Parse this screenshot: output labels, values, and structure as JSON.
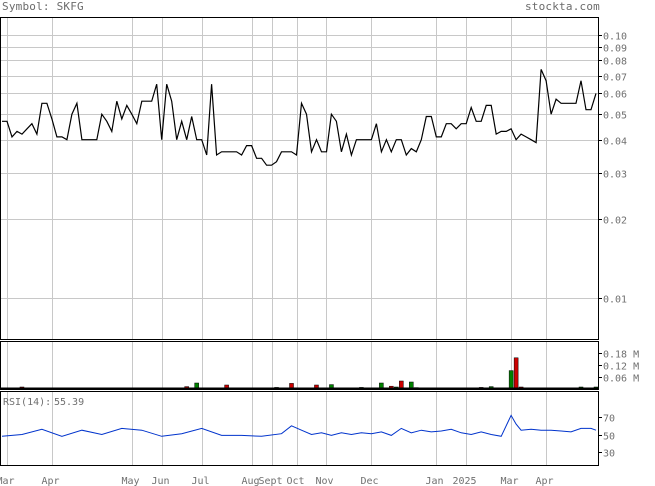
{
  "header": {
    "symbol_label": "Symbol:",
    "symbol": "SKFG",
    "brand": "stockta.com"
  },
  "colors": {
    "grid": "#c8c8c8",
    "price_line": "#000000",
    "volume_up": "#008000",
    "volume_down": "#cc0000",
    "rsi_line": "#0033cc",
    "rsi_value": "#0033cc",
    "axis_text": "#707070"
  },
  "chart_data": [
    {
      "type": "line",
      "name": "price",
      "scale": "log",
      "ylim": [
        0.007,
        0.117
      ],
      "yticks": [
        0.01,
        0.02,
        0.03,
        0.04,
        0.05,
        0.06,
        0.07,
        0.08,
        0.09,
        0.1
      ],
      "ytick_labels": [
        "0.01",
        "0.02",
        "0.03",
        "0.04",
        "0.05",
        "0.06",
        "0.07",
        "0.08",
        "0.09",
        "0.10"
      ],
      "grid": true,
      "x": [
        0,
        1,
        2,
        3,
        4,
        5,
        6,
        7,
        8,
        9,
        10,
        11,
        12,
        13,
        14,
        15,
        16,
        17,
        18,
        19,
        20,
        21,
        22,
        23,
        24,
        25,
        26,
        27,
        28,
        29,
        30,
        31,
        32,
        33,
        34,
        35,
        36,
        37,
        38,
        39,
        40,
        41,
        42,
        43,
        44,
        45,
        46,
        47,
        48,
        49,
        50,
        51,
        52,
        53,
        54,
        55,
        56,
        57,
        58,
        59,
        60,
        61,
        62,
        63,
        64,
        65,
        66,
        67,
        68,
        69,
        70,
        71,
        72,
        73,
        74,
        75,
        76,
        77,
        78,
        79,
        80,
        81,
        82,
        83,
        84,
        85,
        86,
        87,
        88,
        89,
        90,
        91,
        92,
        93,
        94,
        95,
        96,
        97,
        98,
        99,
        100,
        101,
        102,
        103,
        104,
        105,
        106,
        107,
        108,
        109,
        110,
        111,
        112,
        113,
        114,
        115,
        116,
        117,
        118,
        119
      ],
      "values": [
        0.047,
        0.047,
        0.041,
        0.043,
        0.042,
        0.044,
        0.046,
        0.042,
        0.055,
        0.055,
        0.048,
        0.041,
        0.041,
        0.04,
        0.05,
        0.055,
        0.04,
        0.04,
        0.04,
        0.04,
        0.05,
        0.047,
        0.043,
        0.056,
        0.048,
        0.054,
        0.05,
        0.046,
        0.056,
        0.056,
        0.056,
        0.065,
        0.04,
        0.065,
        0.056,
        0.04,
        0.047,
        0.04,
        0.049,
        0.04,
        0.04,
        0.035,
        0.065,
        0.035,
        0.036,
        0.036,
        0.036,
        0.036,
        0.035,
        0.038,
        0.038,
        0.034,
        0.034,
        0.032,
        0.032,
        0.033,
        0.036,
        0.036,
        0.036,
        0.035,
        0.055,
        0.05,
        0.036,
        0.04,
        0.036,
        0.036,
        0.05,
        0.047,
        0.036,
        0.042,
        0.035,
        0.04,
        0.04,
        0.04,
        0.04,
        0.046,
        0.036,
        0.04,
        0.036,
        0.04,
        0.04,
        0.035,
        0.037,
        0.036,
        0.04,
        0.049,
        0.049,
        0.041,
        0.041,
        0.046,
        0.046,
        0.044,
        0.046,
        0.046,
        0.053,
        0.047,
        0.047,
        0.054,
        0.054,
        0.042,
        0.043,
        0.043,
        0.044,
        0.04,
        0.042,
        0.041,
        0.04,
        0.039,
        0.074,
        0.067,
        0.05,
        0.057,
        0.055,
        0.055,
        0.055,
        0.055,
        0.067,
        0.052,
        0.052,
        0.06
      ]
    },
    {
      "type": "bar",
      "name": "volume",
      "yticks": [
        0.06,
        0.12,
        0.18
      ],
      "ytick_labels": [
        "0.06 M",
        "0.12 M",
        "0.18 M"
      ],
      "ylim": [
        0,
        0.24
      ],
      "bars": [
        {
          "x": 4,
          "v": 0.01,
          "dir": "down"
        },
        {
          "x": 37,
          "v": 0.012,
          "dir": "down"
        },
        {
          "x": 39,
          "v": 0.03,
          "dir": "up"
        },
        {
          "x": 45,
          "v": 0.02,
          "dir": "down"
        },
        {
          "x": 52,
          "v": 0.005,
          "dir": "down"
        },
        {
          "x": 55,
          "v": 0.008,
          "dir": "up"
        },
        {
          "x": 58,
          "v": 0.028,
          "dir": "down"
        },
        {
          "x": 63,
          "v": 0.02,
          "dir": "down"
        },
        {
          "x": 66,
          "v": 0.022,
          "dir": "up"
        },
        {
          "x": 72,
          "v": 0.008,
          "dir": "up"
        },
        {
          "x": 76,
          "v": 0.03,
          "dir": "up"
        },
        {
          "x": 78,
          "v": 0.014,
          "dir": "down"
        },
        {
          "x": 79,
          "v": 0.01,
          "dir": "up"
        },
        {
          "x": 80,
          "v": 0.04,
          "dir": "down"
        },
        {
          "x": 82,
          "v": 0.035,
          "dir": "up"
        },
        {
          "x": 83,
          "v": 0.007,
          "dir": "down"
        },
        {
          "x": 96,
          "v": 0.008,
          "dir": "down"
        },
        {
          "x": 98,
          "v": 0.012,
          "dir": "up"
        },
        {
          "x": 102,
          "v": 0.092,
          "dir": "up"
        },
        {
          "x": 103,
          "v": 0.156,
          "dir": "down"
        },
        {
          "x": 104,
          "v": 0.01,
          "dir": "down"
        },
        {
          "x": 106,
          "v": 0.005,
          "dir": "up"
        },
        {
          "x": 116,
          "v": 0.01,
          "dir": "up"
        },
        {
          "x": 119,
          "v": 0.01,
          "dir": "up"
        }
      ]
    },
    {
      "type": "line",
      "name": "rsi",
      "label": "RSI(14):",
      "value_text": "55.39",
      "ylim": [
        15,
        100
      ],
      "yticks": [
        30,
        50,
        70
      ],
      "ytick_labels": [
        "30",
        "50",
        "70"
      ],
      "x": [
        0,
        4,
        8,
        12,
        16,
        20,
        24,
        28,
        32,
        36,
        40,
        44,
        48,
        52,
        56,
        58,
        60,
        62,
        64,
        66,
        68,
        70,
        72,
        74,
        76,
        78,
        80,
        82,
        84,
        86,
        88,
        90,
        92,
        94,
        96,
        98,
        100,
        102,
        103,
        104,
        106,
        108,
        110,
        112,
        114,
        116,
        118,
        119
      ],
      "values": [
        48,
        50,
        56,
        48,
        55,
        50,
        57,
        55,
        48,
        51,
        57,
        49,
        49,
        48,
        51,
        60,
        55,
        50,
        52,
        49,
        52,
        50,
        52,
        51,
        53,
        49,
        57,
        52,
        55,
        53,
        54,
        56,
        52,
        50,
        53,
        50,
        48,
        72,
        62,
        55,
        56,
        55,
        55,
        54,
        53,
        57,
        57,
        55
      ]
    }
  ],
  "x_axis": {
    "months": [
      {
        "label": "Mar",
        "x": 1
      },
      {
        "label": "Apr",
        "x": 10
      },
      {
        "label": "May",
        "x": 26
      },
      {
        "label": "Jun",
        "x": 32
      },
      {
        "label": "Jul",
        "x": 40
      },
      {
        "label": "Aug",
        "x": 50
      },
      {
        "label": "Sept",
        "x": 54
      },
      {
        "label": "Oct",
        "x": 59
      },
      {
        "label": "Nov",
        "x": 65
      },
      {
        "label": "Dec",
        "x": 74
      },
      {
        "label": "Jan",
        "x": 87
      },
      {
        "label": "2025",
        "x": 93
      },
      {
        "label": "Mar",
        "x": 102
      },
      {
        "label": "Apr",
        "x": 109
      }
    ]
  }
}
